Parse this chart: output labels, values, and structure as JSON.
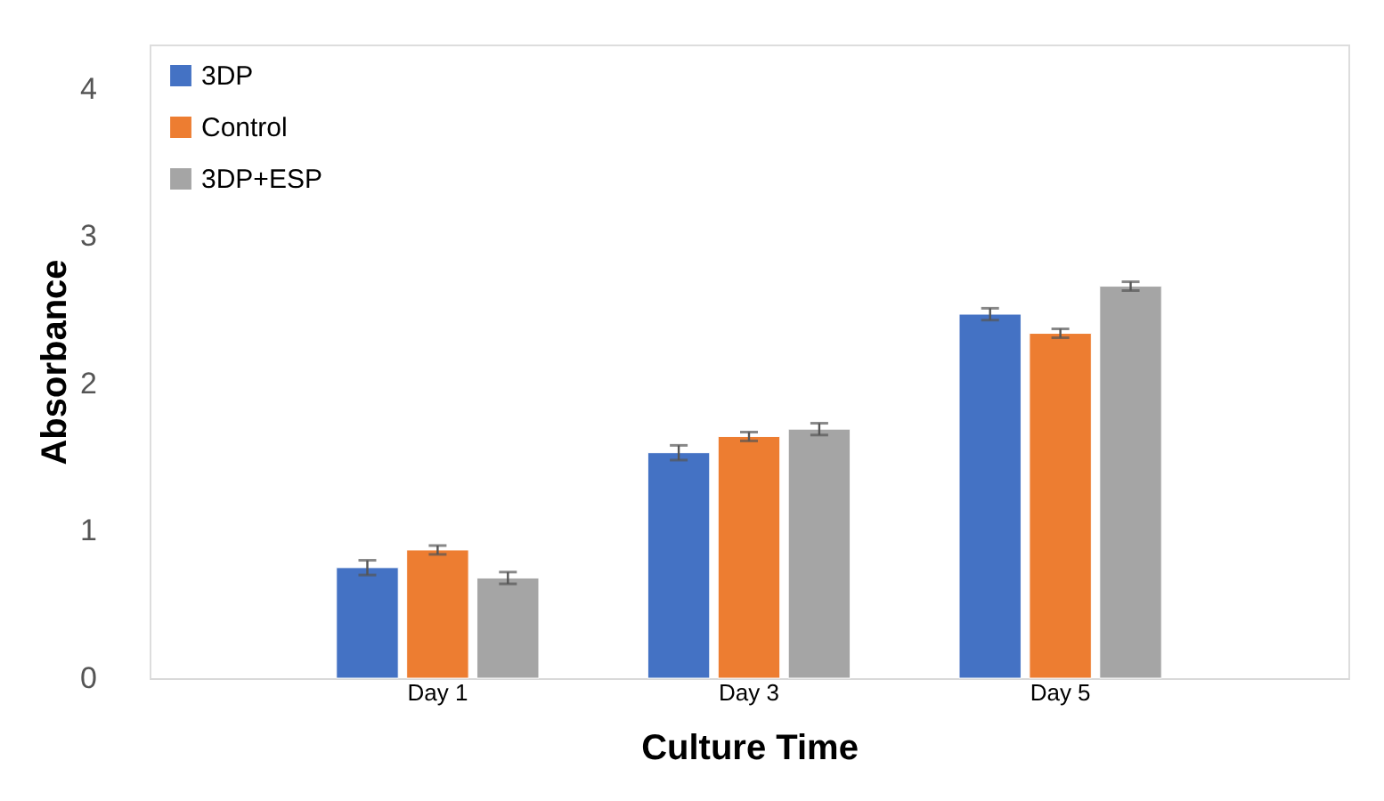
{
  "chart_data": {
    "type": "bar",
    "xlabel": "Culture Time",
    "ylabel": "Absorbance",
    "categories": [
      "Day 1",
      "Day 3",
      "Day 5"
    ],
    "series": [
      {
        "name": "3DP",
        "color": "#4472c4",
        "values": [
          0.75,
          1.53,
          2.47
        ],
        "errors": [
          0.05,
          0.05,
          0.04
        ]
      },
      {
        "name": "Control",
        "color": "#ed7d31",
        "values": [
          0.87,
          1.64,
          2.34
        ],
        "errors": [
          0.03,
          0.03,
          0.03
        ]
      },
      {
        "name": "3DP+ESP",
        "color": "#a5a5a5",
        "values": [
          0.68,
          1.69,
          2.66
        ],
        "errors": [
          0.04,
          0.04,
          0.03
        ]
      }
    ],
    "ylim": [
      0,
      4.3
    ],
    "yticks": [
      0,
      1,
      2,
      3,
      4
    ],
    "grid": false,
    "legend": "top left"
  }
}
